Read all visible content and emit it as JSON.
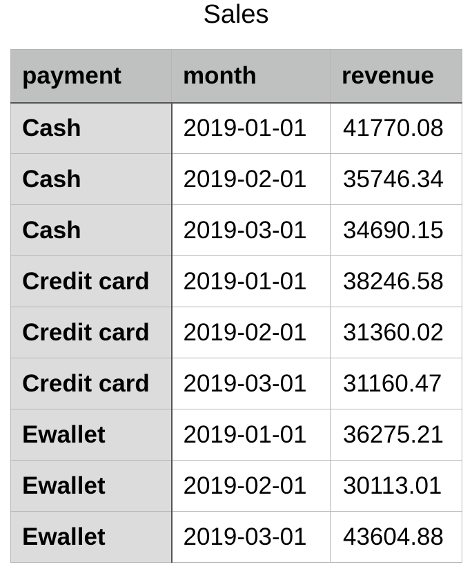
{
  "title": "Sales",
  "table": {
    "columns": [
      "payment",
      "month",
      "revenue"
    ],
    "rows": [
      {
        "payment": "Cash",
        "month": "2019-01-01",
        "revenue": "41770.08"
      },
      {
        "payment": "Cash",
        "month": "2019-02-01",
        "revenue": "35746.34"
      },
      {
        "payment": "Cash",
        "month": "2019-03-01",
        "revenue": "34690.15"
      },
      {
        "payment": "Credit card",
        "month": "2019-01-01",
        "revenue": "38246.58"
      },
      {
        "payment": "Credit card",
        "month": "2019-02-01",
        "revenue": "31360.02"
      },
      {
        "payment": "Credit card",
        "month": "2019-03-01",
        "revenue": "31160.47"
      },
      {
        "payment": "Ewallet",
        "month": "2019-01-01",
        "revenue": "36275.21"
      },
      {
        "payment": "Ewallet",
        "month": "2019-02-01",
        "revenue": "30113.01"
      },
      {
        "payment": "Ewallet",
        "month": "2019-03-01",
        "revenue": "43604.88"
      }
    ]
  },
  "colors": {
    "header_bg": "#bfc1c0",
    "index_bg": "#dcdcdc",
    "cell_bg": "#ffffff",
    "border": "#b5b5b5"
  }
}
